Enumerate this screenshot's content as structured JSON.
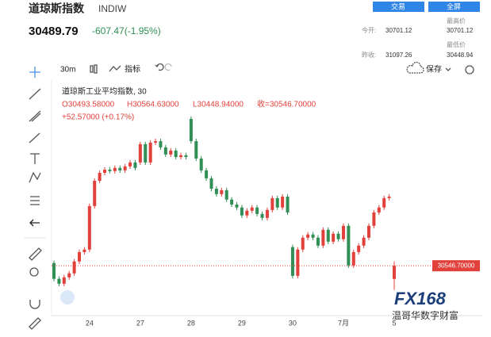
{
  "header": {
    "title": "道琼斯指数",
    "symbol": "INDIW",
    "price": "30489.79",
    "change": "-607.47(-1.95%)",
    "buttons": [
      "交易",
      "全屏"
    ],
    "stats": {
      "open_label": "今开:",
      "open": "30701.12",
      "prev_close_label": "昨收:",
      "prev_close": "31097.26",
      "high_label": "最高价",
      "high": "30701.12",
      "low_label": "最低价",
      "low": "30448.94"
    }
  },
  "toolbar": {
    "interval": "30m",
    "indicators": "指标",
    "save": "保存"
  },
  "legend": {
    "name": "道琼斯工业平均指数, 30",
    "open": "O30493.58000",
    "high": "H30564.63000",
    "low": "L30448.94000",
    "close": "收=30546.70000",
    "change": "+52.57000 (+0.17%)"
  },
  "watermark": {
    "logo": "FX168",
    "text": "温哥华数字财富"
  },
  "chart_data": {
    "type": "candlestick",
    "up_color": "#e2413b",
    "down_color": "#2f8f55",
    "categories": [
      null,
      null,
      null,
      null,
      null,
      null,
      null,
      "24",
      null,
      null,
      null,
      null,
      null,
      null,
      null,
      null,
      null,
      "27",
      null,
      null,
      null,
      null,
      null,
      null,
      null,
      null,
      null,
      "28",
      null,
      null,
      null,
      null,
      null,
      null,
      null,
      null,
      null,
      "29",
      null,
      null,
      null,
      null,
      null,
      null,
      null,
      null,
      null,
      "30",
      null,
      null,
      null,
      null,
      null,
      null,
      null,
      null,
      null,
      "7月",
      null,
      null,
      null,
      null,
      null,
      null,
      null,
      null,
      null,
      "5"
    ],
    "open": [
      30558,
      30494,
      30474,
      30500,
      30516,
      30564,
      30602,
      30612,
      30788,
      30890,
      30922,
      30935,
      30929,
      30942,
      30932,
      30948,
      30964,
      30964,
      31038,
      30964,
      31044,
      31050,
      31025,
      30996,
      31012,
      30986,
      30993,
      31140,
      31050,
      30980,
      30932,
      30900,
      30858,
      30836,
      30852,
      30814,
      30794,
      30782,
      30750,
      30769,
      30782,
      30756,
      30740,
      30772,
      30820,
      30782,
      30826,
      30622,
      30506,
      30612,
      30660,
      30673,
      30660,
      30628,
      30692,
      30644,
      30676,
      30654,
      30708,
      30548,
      30602,
      30628,
      30660,
      30708,
      30762,
      30782,
      30820,
      30493.58
    ],
    "high": [
      30568,
      30504,
      30510,
      30526,
      30574,
      30612,
      30622,
      30798,
      30900,
      30932,
      30945,
      30945,
      30952,
      30952,
      30958,
      30974,
      30974,
      31048,
      31048,
      31054,
      31060,
      31060,
      31035,
      31022,
      31022,
      31003,
      31003,
      31150,
      31060,
      30990,
      30942,
      30910,
      30868,
      30862,
      30862,
      30824,
      30804,
      30792,
      30779,
      30792,
      30792,
      30766,
      30782,
      30830,
      30830,
      30836,
      30836,
      30632,
      30622,
      30670,
      30683,
      30683,
      30670,
      30702,
      30702,
      30686,
      30686,
      30718,
      30718,
      30612,
      30638,
      30670,
      30718,
      30772,
      30792,
      30830,
      30836,
      30564.63
    ],
    "low": [
      30484,
      30464,
      30464,
      30490,
      30506,
      30554,
      30592,
      30602,
      30778,
      30880,
      30912,
      30919,
      30919,
      30922,
      30922,
      30938,
      30932,
      30954,
      30954,
      30954,
      31034,
      31015,
      30986,
      30986,
      30976,
      30976,
      30976,
      31040,
      30970,
      30922,
      30890,
      30848,
      30826,
      30826,
      30804,
      30784,
      30772,
      30740,
      30740,
      30759,
      30746,
      30730,
      30730,
      30762,
      30772,
      30772,
      30752,
      30496,
      30496,
      30602,
      30650,
      30650,
      30618,
      30618,
      30634,
      30634,
      30644,
      30644,
      30538,
      30538,
      30592,
      30618,
      30650,
      30698,
      30752,
      30772,
      30810,
      30448.94
    ],
    "close": [
      30494,
      30474,
      30500,
      30516,
      30564,
      30602,
      30612,
      30788,
      30890,
      30922,
      30935,
      30929,
      30942,
      30932,
      30948,
      30964,
      30942,
      31038,
      30964,
      31044,
      31050,
      31025,
      30996,
      31012,
      30986,
      30993,
      30986,
      31050,
      30980,
      30932,
      30900,
      30858,
      30836,
      30852,
      30814,
      30794,
      30782,
      30750,
      30769,
      30782,
      30756,
      30740,
      30772,
      30820,
      30782,
      30826,
      30762,
      30506,
      30612,
      30660,
      30673,
      30660,
      30628,
      30692,
      30644,
      30676,
      30654,
      30708,
      30548,
      30602,
      30628,
      30660,
      30708,
      30762,
      30782,
      30820,
      30826,
      30546.7
    ],
    "ylim": [
      30355,
      31300
    ],
    "last_price": {
      "value": 30546.7,
      "label": "30546.70000",
      "color": "#e2413b"
    }
  }
}
